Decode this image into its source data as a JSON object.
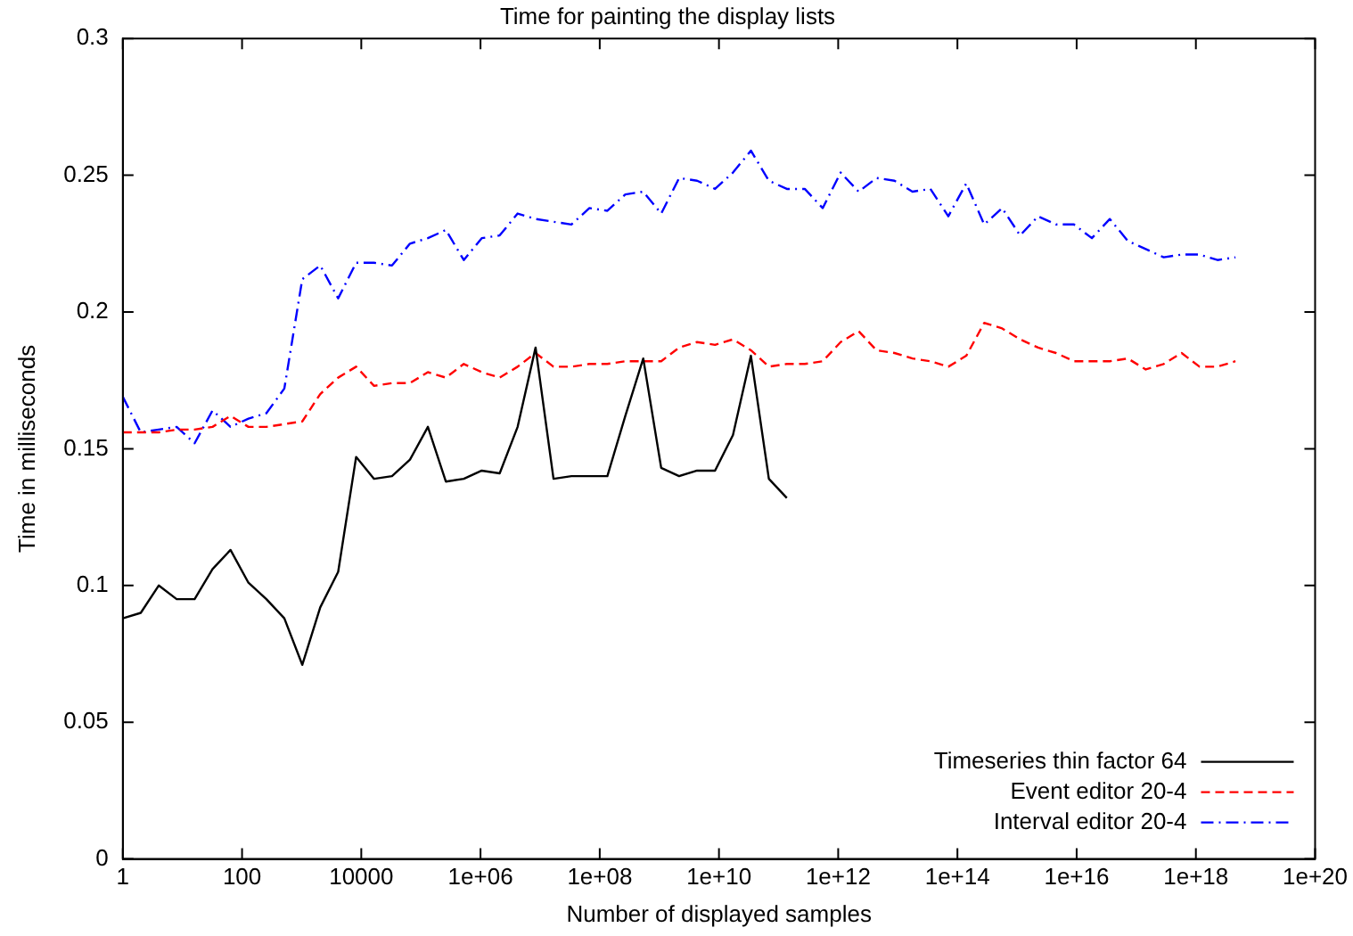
{
  "chart_data": {
    "type": "line",
    "title": "Time for painting the display lists",
    "xlabel": "Number of displayed samples",
    "ylabel": "Time in milliseconds",
    "x": [
      1,
      2,
      4,
      8,
      16,
      32,
      64,
      128,
      256,
      512,
      1024,
      2048,
      4096,
      8192,
      16384,
      32768,
      65536,
      131072,
      262144,
      524288,
      1048576,
      2097152,
      4194304,
      8388608,
      16777216,
      33554432,
      67108864,
      134217728,
      268435456,
      536870912,
      1073741824,
      2147483648,
      4294967296,
      8589934592,
      17179869184,
      34359738368,
      68719476736,
      137438953472,
      274877906944,
      549755813888,
      1099511627776,
      2199023255552,
      4398046511104,
      8796093022208,
      17592186044416,
      35184372088832,
      70368744177664,
      140737488355328,
      281474976710656,
      562949953421312,
      1125899906842624,
      2251799813685248,
      4503599627370496,
      9007199254740992,
      18014398509481984,
      36028797018963968,
      72057594037927936,
      144115188075855872,
      288230376151711744,
      576460752303423488,
      1152921504606846976,
      2305843009213693952,
      4611686018427387904
    ],
    "series": [
      {
        "name": "Timeseries thin factor 64",
        "color": "#000000",
        "line_style": "solid",
        "values": [
          0.088,
          0.09,
          0.1,
          0.095,
          0.095,
          0.106,
          0.113,
          0.101,
          0.095,
          0.088,
          0.071,
          0.092,
          0.105,
          0.147,
          0.139,
          0.14,
          0.146,
          0.158,
          0.138,
          0.139,
          0.142,
          0.141,
          0.158,
          0.187,
          0.139,
          0.14,
          0.14,
          0.14,
          0.162,
          0.183,
          0.143,
          0.14,
          0.142,
          0.142,
          0.155,
          0.184,
          0.139,
          0.132,
          null,
          null,
          null,
          null,
          null,
          null,
          null,
          null,
          null,
          null,
          null,
          null,
          null,
          null,
          null,
          null,
          null,
          null,
          null,
          null,
          null,
          null,
          null,
          null,
          null
        ]
      },
      {
        "name": "Event editor 20-4",
        "color": "#ff0000",
        "line_style": "dashed",
        "values": [
          0.156,
          0.156,
          0.156,
          0.157,
          0.157,
          0.158,
          0.162,
          0.158,
          0.158,
          0.159,
          0.16,
          0.17,
          0.176,
          0.18,
          0.173,
          0.174,
          0.174,
          0.178,
          0.176,
          0.181,
          0.178,
          0.176,
          0.18,
          0.185,
          0.18,
          0.18,
          0.181,
          0.181,
          0.182,
          0.182,
          0.182,
          0.187,
          0.189,
          0.188,
          0.19,
          0.186,
          0.18,
          0.181,
          0.181,
          0.182,
          0.189,
          0.193,
          0.186,
          0.185,
          0.183,
          0.182,
          0.18,
          0.184,
          0.196,
          0.194,
          0.19,
          0.187,
          0.185,
          0.182,
          0.182,
          0.182,
          0.183,
          0.179,
          0.181,
          0.185,
          0.18,
          0.18,
          0.182
        ]
      },
      {
        "name": "Interval editor 20-4",
        "color": "#0000ff",
        "line_style": "dashdot",
        "values": [
          0.169,
          0.156,
          0.157,
          0.158,
          0.152,
          0.164,
          0.158,
          0.161,
          0.163,
          0.172,
          0.212,
          0.217,
          0.205,
          0.218,
          0.218,
          0.217,
          0.225,
          0.227,
          0.23,
          0.219,
          0.227,
          0.228,
          0.236,
          0.234,
          0.233,
          0.232,
          0.238,
          0.237,
          0.243,
          0.244,
          0.236,
          0.249,
          0.248,
          0.245,
          0.251,
          0.259,
          0.248,
          0.245,
          0.245,
          0.238,
          0.251,
          0.244,
          0.249,
          0.248,
          0.244,
          0.245,
          0.235,
          0.247,
          0.232,
          0.238,
          0.228,
          0.235,
          0.232,
          0.232,
          0.227,
          0.234,
          0.226,
          0.223,
          0.22,
          0.221,
          0.221,
          0.219,
          0.22
        ]
      }
    ],
    "log": "x",
    "xlim": [
      1,
      1e+20
    ],
    "xticks": [
      1,
      100,
      10000,
      {
        "value": 1000000.0,
        "label": "1e+06"
      },
      {
        "value": 100000000.0,
        "label": "1e+08"
      },
      {
        "value": 10000000000.0,
        "label": "1e+10"
      },
      {
        "value": 1000000000000.0,
        "label": "1e+12"
      },
      {
        "value": 100000000000000.0,
        "label": "1e+14"
      },
      {
        "value": 1e+16,
        "label": "1e+16"
      },
      {
        "value": 1e+18,
        "label": "1e+18"
      },
      {
        "value": 1e+20,
        "label": "1e+20"
      }
    ],
    "ylim": [
      0,
      0.3
    ],
    "yticks": [
      0,
      0.05,
      0.1,
      0.15,
      0.2,
      0.25,
      0.3
    ],
    "grid": false,
    "legend": "bottom right",
    "marker": "none"
  }
}
